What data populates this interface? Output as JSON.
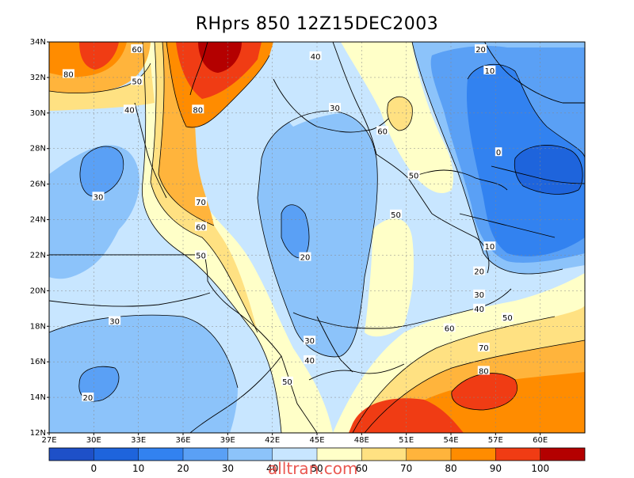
{
  "title": "RHprs 850 12Z15DEC2003",
  "watermark": "alltran.com",
  "map": {
    "lon_range": [
      27,
      63
    ],
    "lat_range": [
      12,
      34
    ],
    "x_ticks": [
      "27E",
      "30E",
      "33E",
      "36E",
      "39E",
      "42E",
      "45E",
      "48E",
      "51E",
      "54E",
      "57E",
      "60E"
    ],
    "y_ticks": [
      "12N",
      "14N",
      "16N",
      "18N",
      "20N",
      "22N",
      "24N",
      "26N",
      "28N",
      "30N",
      "32N",
      "34N"
    ],
    "contour_labels": [
      {
        "text": "60",
        "lon": 32.9,
        "lat": 33.6
      },
      {
        "text": "80",
        "lon": 28.3,
        "lat": 32.2
      },
      {
        "text": "50",
        "lon": 32.9,
        "lat": 31.8
      },
      {
        "text": "40",
        "lon": 32.4,
        "lat": 30.2
      },
      {
        "text": "80",
        "lon": 37.0,
        "lat": 30.2
      },
      {
        "text": "40",
        "lon": 44.9,
        "lat": 33.2
      },
      {
        "text": "30",
        "lon": 46.2,
        "lat": 30.3
      },
      {
        "text": "60",
        "lon": 49.4,
        "lat": 29.0
      },
      {
        "text": "50",
        "lon": 51.5,
        "lat": 26.5
      },
      {
        "text": "50",
        "lon": 50.3,
        "lat": 24.3
      },
      {
        "text": "20",
        "lon": 56.0,
        "lat": 33.6
      },
      {
        "text": "10",
        "lon": 56.6,
        "lat": 32.4
      },
      {
        "text": "0",
        "lon": 57.2,
        "lat": 27.8
      },
      {
        "text": "10",
        "lon": 56.6,
        "lat": 22.5
      },
      {
        "text": "20",
        "lon": 55.9,
        "lat": 21.1
      },
      {
        "text": "30",
        "lon": 55.9,
        "lat": 19.8
      },
      {
        "text": "40",
        "lon": 55.9,
        "lat": 19.0
      },
      {
        "text": "50",
        "lon": 57.8,
        "lat": 18.5
      },
      {
        "text": "60",
        "lon": 53.9,
        "lat": 17.9
      },
      {
        "text": "70",
        "lon": 56.2,
        "lat": 16.8
      },
      {
        "text": "80",
        "lon": 56.2,
        "lat": 15.5
      },
      {
        "text": "30",
        "lon": 30.3,
        "lat": 25.3
      },
      {
        "text": "70",
        "lon": 37.2,
        "lat": 25.0
      },
      {
        "text": "60",
        "lon": 37.2,
        "lat": 23.6
      },
      {
        "text": "50",
        "lon": 37.2,
        "lat": 22.0
      },
      {
        "text": "20",
        "lon": 44.2,
        "lat": 21.9
      },
      {
        "text": "30",
        "lon": 31.4,
        "lat": 18.3
      },
      {
        "text": "30",
        "lon": 44.5,
        "lat": 17.2
      },
      {
        "text": "40",
        "lon": 44.5,
        "lat": 16.1
      },
      {
        "text": "50",
        "lon": 43.0,
        "lat": 14.9
      },
      {
        "text": "20",
        "lon": 29.6,
        "lat": 14.0
      }
    ]
  },
  "colorbar": {
    "labels": [
      "0",
      "10",
      "20",
      "30",
      "40",
      "50",
      "60",
      "70",
      "80",
      "90",
      "100"
    ],
    "colors": [
      "#1e64dc",
      "#3282f0",
      "#5aa0f5",
      "#8cc3fa",
      "#c8e6ff",
      "#ffffc8",
      "#ffe182",
      "#ffb43c",
      "#ff8c00",
      "#f03c14",
      "#b40000"
    ]
  }
}
